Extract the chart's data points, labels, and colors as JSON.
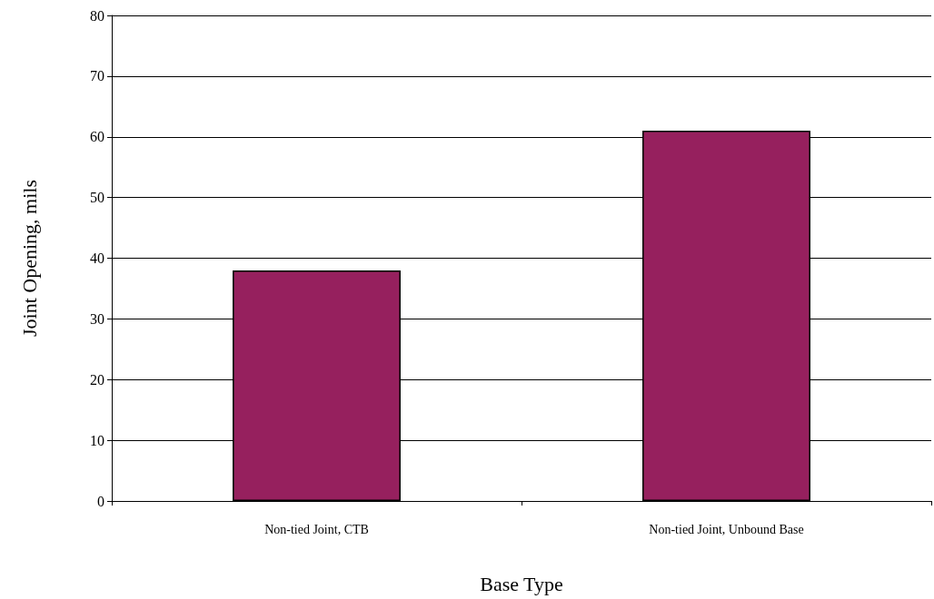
{
  "chart_data": {
    "type": "bar",
    "xlabel": "Base Type",
    "ylabel": "Joint Opening, mils",
    "categories": [
      "Non-tied Joint, CTB",
      "Non-tied Joint, Unbound Base"
    ],
    "values": [
      38,
      61
    ],
    "color": "#96205e",
    "ylim": [
      0,
      80
    ],
    "yticks": [
      0,
      10,
      20,
      30,
      40,
      50,
      60,
      70,
      80
    ],
    "grid": "y"
  }
}
